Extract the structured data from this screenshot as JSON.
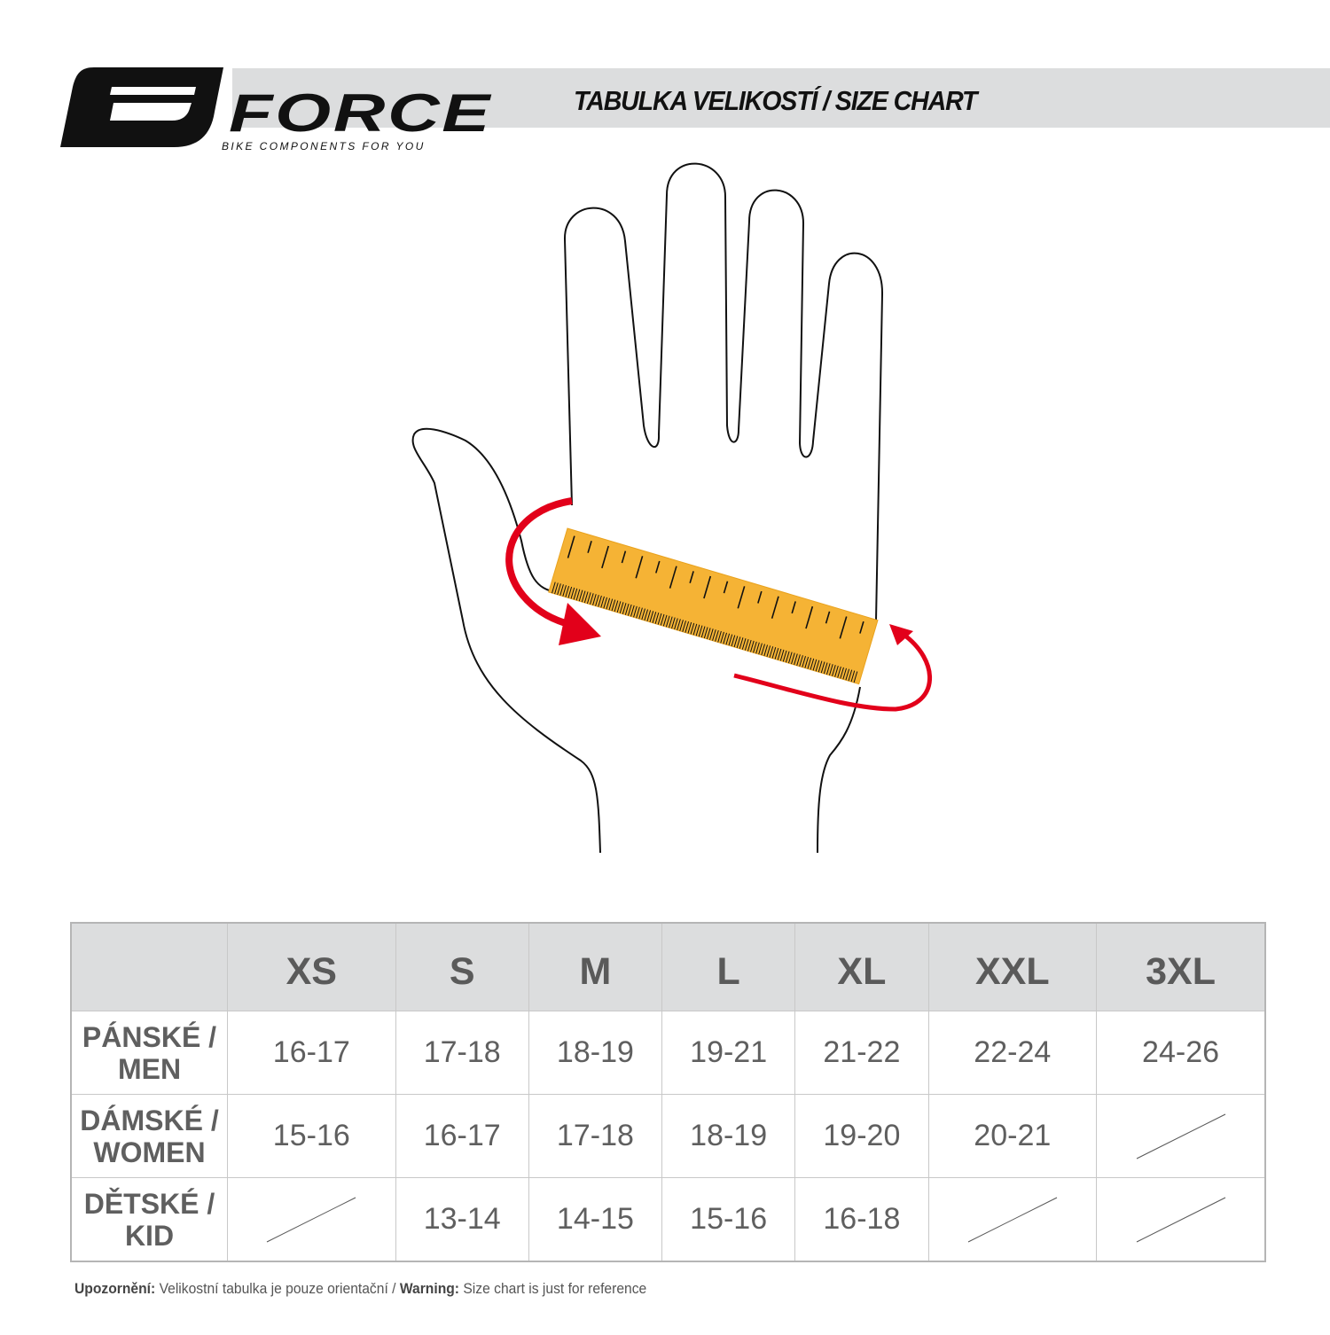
{
  "header": {
    "logo_text": "FORCE",
    "logo_tagline": "BIKE COMPONENTS FOR YOU",
    "title": "TABULKA VELIKOSTÍ / SIZE CHART"
  },
  "colors": {
    "ruler": "#F5B335",
    "arrow": "#E2001A",
    "header_bg": "#DCDDDE",
    "text": "#5F5F5F"
  },
  "table": {
    "columns": [
      "XS",
      "S",
      "M",
      "L",
      "XL",
      "XXL",
      "3XL"
    ],
    "rows": [
      {
        "label_line1": "PÁNSKÉ /",
        "label_line2": "MEN",
        "values": [
          "16-17",
          "17-18",
          "18-19",
          "19-21",
          "21-22",
          "22-24",
          "24-26"
        ]
      },
      {
        "label_line1": "DÁMSKÉ /",
        "label_line2": "WOMEN",
        "values": [
          "15-16",
          "16-17",
          "17-18",
          "18-19",
          "19-20",
          "20-21",
          null
        ]
      },
      {
        "label_line1": "DĚTSKÉ /",
        "label_line2": "KID",
        "values": [
          null,
          "13-14",
          "14-15",
          "15-16",
          "16-18",
          null,
          null
        ]
      }
    ]
  },
  "footer": {
    "warning_cz_label": "Upozornění:",
    "warning_cz_text": " Velikostní tabulka je pouze orientační / ",
    "warning_en_label": "Warning:",
    "warning_en_text": " Size chart is just for reference"
  }
}
